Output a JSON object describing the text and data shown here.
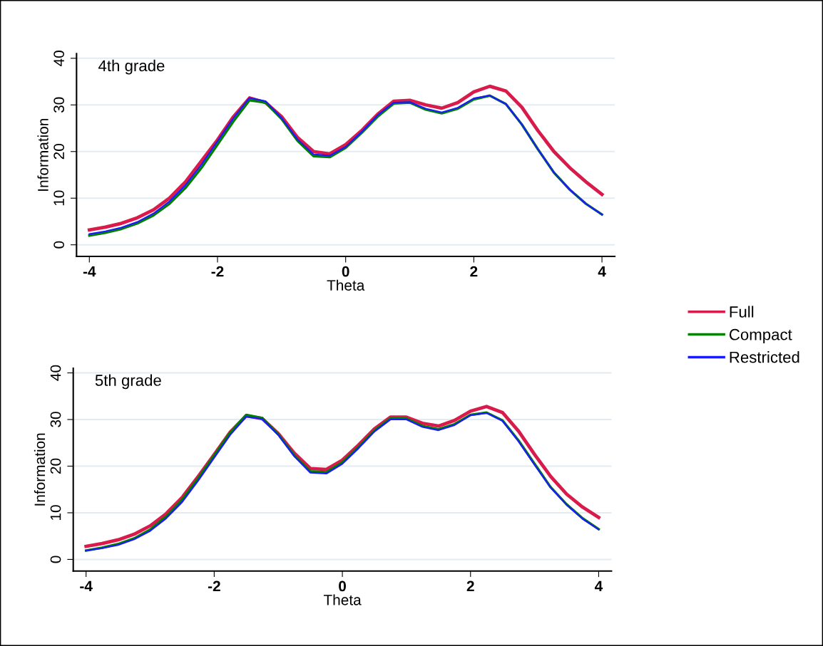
{
  "chart_data": [
    {
      "type": "line",
      "title": "4th grade",
      "xlabel": "Theta",
      "ylabel": "Information",
      "x": [
        -4,
        -3.75,
        -3.5,
        -3.25,
        -3,
        -2.75,
        -2.5,
        -2.25,
        -2,
        -1.75,
        -1.5,
        -1.25,
        -1,
        -0.75,
        -0.5,
        -0.25,
        0,
        0.25,
        0.5,
        0.75,
        1,
        1.25,
        1.5,
        1.75,
        2,
        2.25,
        2.5,
        2.75,
        3,
        3.25,
        3.5,
        3.75,
        4
      ],
      "series": [
        {
          "name": "Full",
          "color": "#d81b4a",
          "values": [
            3.2,
            3.8,
            4.6,
            5.8,
            7.5,
            10,
            13.5,
            18,
            22.5,
            27.5,
            31.5,
            30.5,
            27.5,
            23,
            20,
            19.5,
            21.5,
            24.5,
            28,
            30.8,
            31,
            30,
            29.3,
            30.5,
            32.8,
            34,
            33,
            29.5,
            24.5,
            20,
            16.5,
            13.5,
            10.8
          ]
        },
        {
          "name": "Compact",
          "color": "#008000",
          "values": [
            2,
            2.6,
            3.4,
            4.6,
            6.3,
            8.8,
            12.2,
            16.5,
            21.5,
            26.5,
            31,
            30.5,
            27,
            22.3,
            19,
            18.8,
            20.8,
            24,
            27.5,
            30.3,
            30.5,
            29,
            28.2,
            29.2,
            31.2,
            32,
            30.2,
            25.8,
            20.5,
            15.5,
            11.8,
            8.8,
            6.5
          ]
        },
        {
          "name": "Restricted",
          "color": "#1a1aff",
          "values": [
            2.3,
            2.9,
            3.7,
            4.9,
            6.7,
            9.3,
            12.8,
            17.2,
            22.2,
            27.2,
            31.5,
            30.8,
            27.2,
            22.6,
            19.4,
            19.1,
            21,
            24.2,
            27.8,
            30.5,
            30.6,
            29.2,
            28.4,
            29.4,
            31.4,
            32,
            30.2,
            25.8,
            20.5,
            15.5,
            11.8,
            8.8,
            6.5
          ]
        }
      ],
      "xlim": [
        -4.2,
        4.2
      ],
      "ylim": [
        -2.5,
        41
      ],
      "xticks": [
        -4,
        -2,
        0,
        2,
        4
      ],
      "yticks": [
        0,
        10,
        20,
        30,
        40
      ],
      "grid": "y",
      "legend": "right"
    },
    {
      "type": "line",
      "title": "5th grade",
      "xlabel": "Theta",
      "ylabel": "Information",
      "x": [
        -4,
        -3.75,
        -3.5,
        -3.25,
        -3,
        -2.75,
        -2.5,
        -2.25,
        -2,
        -1.75,
        -1.5,
        -1.25,
        -1,
        -0.75,
        -0.5,
        -0.25,
        0,
        0.25,
        0.5,
        0.75,
        1,
        1.25,
        1.5,
        1.75,
        2,
        2.25,
        2.5,
        2.75,
        3,
        3.25,
        3.5,
        3.75,
        4
      ],
      "series": [
        {
          "color": "#d81b4a",
          "values": [
            2.8,
            3.4,
            4.2,
            5.4,
            7.2,
            9.8,
            13.3,
            17.8,
            22.5,
            27.3,
            30.8,
            30.2,
            27,
            22.8,
            19.5,
            19.3,
            21.3,
            24.5,
            28,
            30.5,
            30.5,
            29.2,
            28.6,
            29.8,
            31.8,
            32.8,
            31.5,
            27.5,
            22.5,
            17.8,
            14,
            11.2,
            9
          ]
        },
        {
          "color": "#008000",
          "values": [
            1.9,
            2.5,
            3.3,
            4.5,
            6.4,
            9.2,
            12.8,
            17.4,
            22.3,
            27.2,
            31,
            30.3,
            26.8,
            22.3,
            18.9,
            18.7,
            20.8,
            24.1,
            27.6,
            30.2,
            30.2,
            28.6,
            27.9,
            29,
            31,
            31.5,
            29.8,
            25.5,
            20.5,
            15.5,
            11.8,
            8.8,
            6.5
          ]
        },
        {
          "color": "#1a1aff",
          "values": [
            1.9,
            2.4,
            3.1,
            4.3,
            6.1,
            8.8,
            12.3,
            16.9,
            21.8,
            26.7,
            30.6,
            30.1,
            26.7,
            22.1,
            18.6,
            18.4,
            20.5,
            23.8,
            27.4,
            30,
            30,
            28.4,
            27.7,
            28.8,
            30.9,
            31.4,
            29.7,
            25.3,
            20.3,
            15.4,
            11.7,
            8.7,
            6.4
          ]
        }
      ],
      "xlim": [
        -4.2,
        4.2
      ],
      "ylim": [
        -2.5,
        41
      ],
      "xticks": [
        -4,
        -2,
        0,
        2,
        4
      ],
      "yticks": [
        0,
        10,
        20,
        30,
        40
      ],
      "grid": "y"
    }
  ]
}
